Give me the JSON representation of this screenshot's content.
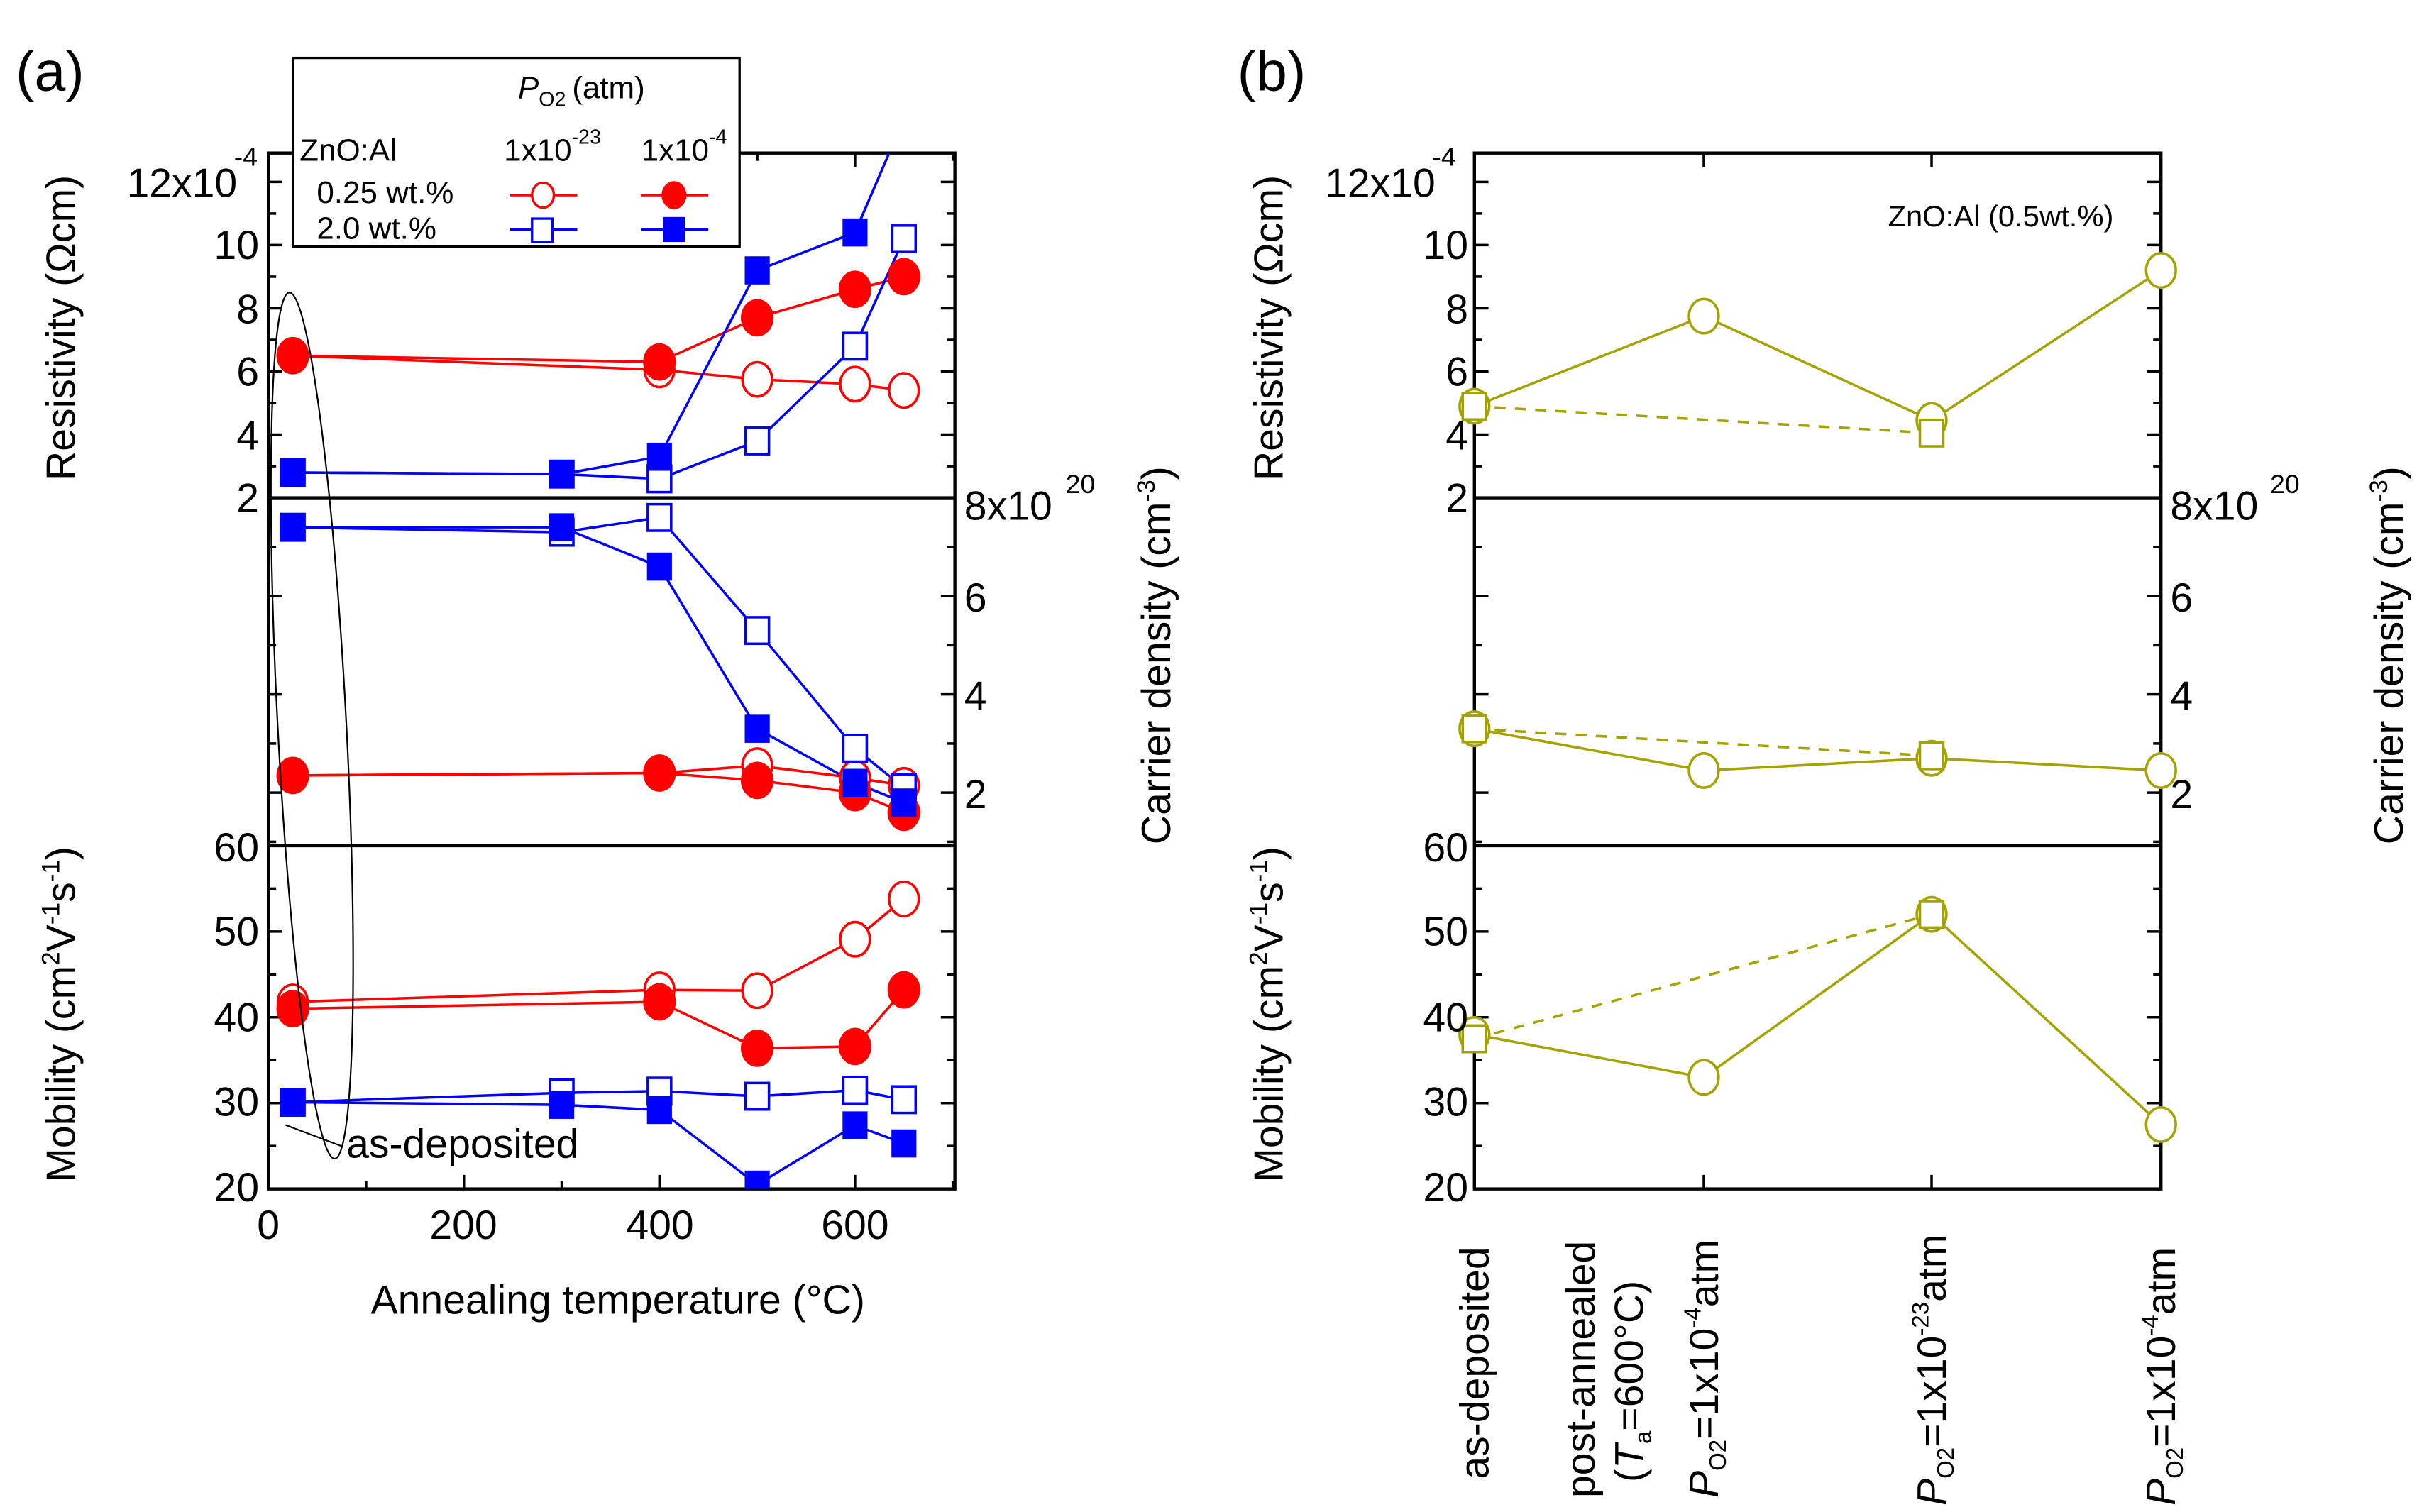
{
  "chart_data": [
    {
      "panel_label": "(a)",
      "type": "line",
      "xlabel": "Annealing temperature (°C)",
      "xlim": [
        0,
        700
      ],
      "xticks": [
        0,
        200,
        400,
        600
      ],
      "legend": {
        "title": "P_O2 (atm)",
        "title_main": "P",
        "title_sub": "O2",
        "title_unit": "(atm)",
        "row_header": "ZnO:Al",
        "columns": [
          "1x10^-23",
          "1x10^-4"
        ],
        "column_base": "1x10",
        "column_exps": [
          "-23",
          "-4"
        ],
        "rows": [
          "0.25 wt.%",
          "2.0 wt.%"
        ],
        "placement": "top-left"
      },
      "annotation": "as-deposited",
      "subplots": [
        {
          "name": "resistivity",
          "ylabel": "Resistivity (Ωcm)",
          "ylim": [
            2,
            12.9
          ],
          "yticks": [
            2,
            4,
            6,
            8,
            10,
            12
          ],
          "ytick_labels": [
            "2",
            "4",
            "6",
            "8",
            "10",
            "12x10"
          ],
          "top_exponent": "-4",
          "series": [
            {
              "name": "0.25 wt.% / 1x10^-23 atm",
              "marker": "open-circle",
              "color": "#ff0000",
              "x": [
                25,
                400,
                500,
                600,
                650
              ],
              "y": [
                6.5,
                6.05,
                5.75,
                5.6,
                5.4
              ]
            },
            {
              "name": "0.25 wt.% / 1x10^-4 atm",
              "marker": "filled-circle",
              "color": "#ff0000",
              "x": [
                25,
                400,
                500,
                600,
                650
              ],
              "y": [
                6.5,
                6.3,
                7.7,
                8.6,
                9.0
              ]
            },
            {
              "name": "2.0 wt.% / 1x10^-23 atm",
              "marker": "open-square",
              "color": "#0000ff",
              "x": [
                25,
                300,
                400,
                500,
                600,
                650
              ],
              "y": [
                2.8,
                2.75,
                2.6,
                3.8,
                6.8,
                10.2
              ]
            },
            {
              "name": "2.0 wt.% / 1x10^-4 atm",
              "marker": "filled-square",
              "color": "#0000ff",
              "x": [
                25,
                300,
                400,
                500,
                600,
                650
              ],
              "y": [
                2.8,
                2.75,
                3.3,
                9.2,
                10.4,
                14.0
              ]
            }
          ]
        },
        {
          "name": "carrier_density",
          "ylabel": "Carrier density (cm^-3)",
          "ylabel_main": "Carrier density (cm",
          "ylabel_exp": "-3",
          "ylim": [
            0.93,
            8
          ],
          "yticks": [
            2,
            4,
            6,
            8
          ],
          "ytick_labels": [
            "2",
            "4",
            "6",
            "8x10"
          ],
          "top_exponent": "20",
          "axis_side": "right",
          "series": [
            {
              "name": "0.25 wt.% / 1x10^-23 atm",
              "marker": "open-circle",
              "color": "#ff0000",
              "x": [
                25,
                400,
                500,
                600,
                650
              ],
              "y": [
                2.35,
                2.4,
                2.55,
                2.3,
                2.15
              ]
            },
            {
              "name": "0.25 wt.% / 1x10^-4 atm",
              "marker": "filled-circle",
              "color": "#ff0000",
              "x": [
                25,
                400,
                500,
                600,
                650
              ],
              "y": [
                2.35,
                2.4,
                2.25,
                2.0,
                1.6
              ]
            },
            {
              "name": "2.0 wt.% / 1x10^-23 atm",
              "marker": "open-square",
              "color": "#0000ff",
              "x": [
                25,
                300,
                400,
                500,
                600,
                650
              ],
              "y": [
                7.4,
                7.3,
                7.6,
                5.3,
                2.9,
                2.1
              ]
            },
            {
              "name": "2.0 wt.% / 1x10^-4 atm",
              "marker": "filled-square",
              "color": "#0000ff",
              "x": [
                25,
                300,
                400,
                500,
                600,
                650
              ],
              "y": [
                7.4,
                7.4,
                6.6,
                3.3,
                2.2,
                1.8
              ]
            }
          ]
        },
        {
          "name": "mobility",
          "ylabel": "Mobility (cm^2V^-1s^-1)",
          "ylim": [
            20,
            60
          ],
          "yticks": [
            20,
            30,
            40,
            50,
            60
          ],
          "ytick_labels": [
            "20",
            "30",
            "40",
            "50",
            "60"
          ],
          "series": [
            {
              "name": "0.25 wt.% / 1x10^-23 atm",
              "marker": "open-circle",
              "color": "#ff0000",
              "x": [
                25,
                400,
                500,
                600,
                650
              ],
              "y": [
                41.8,
                43.2,
                43.1,
                49.1,
                53.8
              ]
            },
            {
              "name": "0.25 wt.% / 1x10^-4 atm",
              "marker": "filled-circle",
              "color": "#ff0000",
              "x": [
                25,
                400,
                500,
                600,
                650
              ],
              "y": [
                41.0,
                41.8,
                36.4,
                36.6,
                43.2
              ]
            },
            {
              "name": "2.0 wt.% / 1x10^-23 atm",
              "marker": "open-square",
              "color": "#0000ff",
              "x": [
                25,
                300,
                400,
                500,
                600,
                650
              ],
              "y": [
                30.1,
                31.2,
                31.4,
                30.8,
                31.5,
                30.4
              ]
            },
            {
              "name": "2.0 wt.% / 1x10^-4 atm",
              "marker": "filled-square",
              "color": "#0000ff",
              "x": [
                25,
                300,
                400,
                500,
                600,
                650
              ],
              "y": [
                30.1,
                29.8,
                29.2,
                20.5,
                27.4,
                25.3
              ]
            }
          ]
        }
      ]
    },
    {
      "panel_label": "(b)",
      "type": "line",
      "annotation": "ZnO:Al (0.5wt.%)",
      "color": "#a3a300",
      "categories": [
        "as-deposited",
        "post-annealed (Ta=600°C) PO2=1x10^-4 atm",
        "PO2=1x10^-23 atm",
        "PO2=1x10^-4 atm"
      ],
      "category_labels": {
        "as_deposited": "as-deposited",
        "post_annealed": "post-annealed",
        "ta_line_open": "(",
        "ta_T": "T",
        "ta_sub": "a",
        "ta_rest": "=600°C)",
        "p": "P",
        "p_sub": "O2",
        "p_mid": "=1x10",
        "exp_a": "-4",
        "exp_b": "-23",
        "exp_c": "-4",
        "unit": "atm"
      },
      "subplots": [
        {
          "name": "resistivity",
          "ylabel": "Resistivity (Ωcm)",
          "ylim": [
            2,
            12.9
          ],
          "yticks": [
            2,
            4,
            6,
            8,
            10,
            12
          ],
          "ytick_labels": [
            "2",
            "4",
            "6",
            "8",
            "10",
            "12x10"
          ],
          "top_exponent": "-4",
          "series": [
            {
              "name": "circle-solid",
              "marker": "open-circle",
              "line": "solid",
              "x": [
                0,
                1,
                2,
                3
              ],
              "y": [
                4.9,
                7.75,
                4.45,
                9.2
              ]
            },
            {
              "name": "square-dashed",
              "marker": "open-square",
              "line": "dashed",
              "x": [
                0,
                2
              ],
              "y": [
                4.9,
                4.05
              ]
            }
          ]
        },
        {
          "name": "carrier_density",
          "ylabel": "Carrier density (cm^-3)",
          "ylabel_main": "Carrier density (cm",
          "ylabel_exp": "-3",
          "ylim": [
            0.93,
            8
          ],
          "yticks": [
            2,
            4,
            6,
            8
          ],
          "ytick_labels": [
            "2",
            "4",
            "6",
            "8x10"
          ],
          "top_exponent": "20",
          "axis_side": "right",
          "series": [
            {
              "name": "circle-solid",
              "marker": "open-circle",
              "line": "solid",
              "x": [
                0,
                1,
                2,
                3
              ],
              "y": [
                3.3,
                2.45,
                2.7,
                2.45
              ]
            },
            {
              "name": "square-dashed",
              "marker": "open-square",
              "line": "dashed",
              "x": [
                0,
                2
              ],
              "y": [
                3.3,
                2.75
              ]
            }
          ]
        },
        {
          "name": "mobility",
          "ylabel": "Mobility (cm^2V^-1s^-1)",
          "ylim": [
            20,
            60
          ],
          "yticks": [
            20,
            30,
            40,
            50,
            60
          ],
          "ytick_labels": [
            "20",
            "30",
            "40",
            "50",
            "60"
          ],
          "series": [
            {
              "name": "circle-solid",
              "marker": "open-circle",
              "line": "solid",
              "x": [
                0,
                1,
                2,
                3
              ],
              "y": [
                38.0,
                33.0,
                52.0,
                27.5
              ]
            },
            {
              "name": "square-dashed",
              "marker": "open-square",
              "line": "dashed",
              "x": [
                0,
                2
              ],
              "y": [
                37.5,
                52.0
              ]
            }
          ]
        }
      ]
    }
  ],
  "labels": {
    "res_main": "Resistivity (",
    "res_omega": "Ω",
    "res_unit": "cm)",
    "mob_main": "Mobility (cm",
    "mob_2": "2",
    "mob_V": "V",
    "mob_m1": "-1",
    "mob_s": "s",
    "mob_m1b": "-1",
    "mob_close": ")"
  }
}
